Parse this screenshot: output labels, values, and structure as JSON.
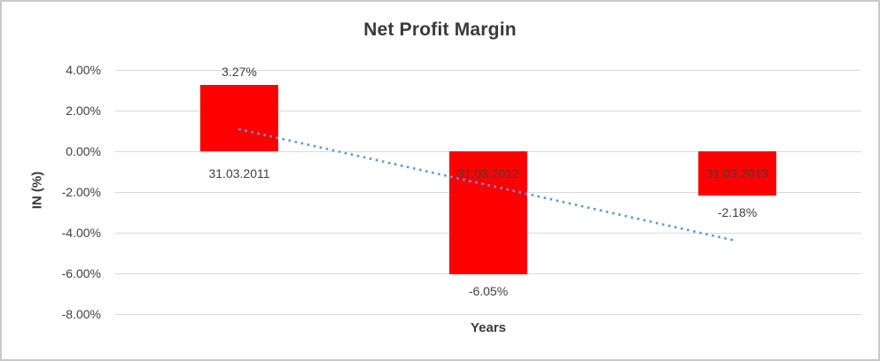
{
  "chart_data": {
    "type": "bar",
    "title": "Net Profit Margin",
    "xlabel": "Years",
    "ylabel": "IN (%)",
    "categories": [
      "31.03.2011",
      "31.03.2012",
      "31.03.2013"
    ],
    "values": [
      3.27,
      -6.05,
      -2.18
    ],
    "value_labels": [
      "3.27%",
      "-6.05%",
      "-2.18%"
    ],
    "ylim": [
      -8,
      4
    ],
    "yticks": [
      4,
      2,
      0,
      -2,
      -4,
      -6,
      -8
    ],
    "ytick_labels": [
      "4.00%",
      "2.00%",
      "0.00%",
      "-2.00%",
      "-4.00%",
      "-6.00%",
      "-8.00%"
    ],
    "grid": true,
    "legend": false,
    "colors": {
      "bar": "#ff0000",
      "trendline": "#5b9bd5",
      "gridline": "#d9d9d9",
      "text": "#404040",
      "title": "#3a3a3a",
      "frame_border": "#c9c9c9"
    },
    "trendline": {
      "style": "dotted",
      "start_category_index": 0,
      "end_category_index": 2,
      "start_value": 1.09,
      "end_value": -4.39
    }
  }
}
